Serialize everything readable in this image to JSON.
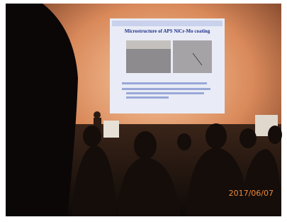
{
  "slide": {
    "title": "Microstructure of APS NiCr-Mo coating"
  },
  "timestamp": "2017/06/07"
}
